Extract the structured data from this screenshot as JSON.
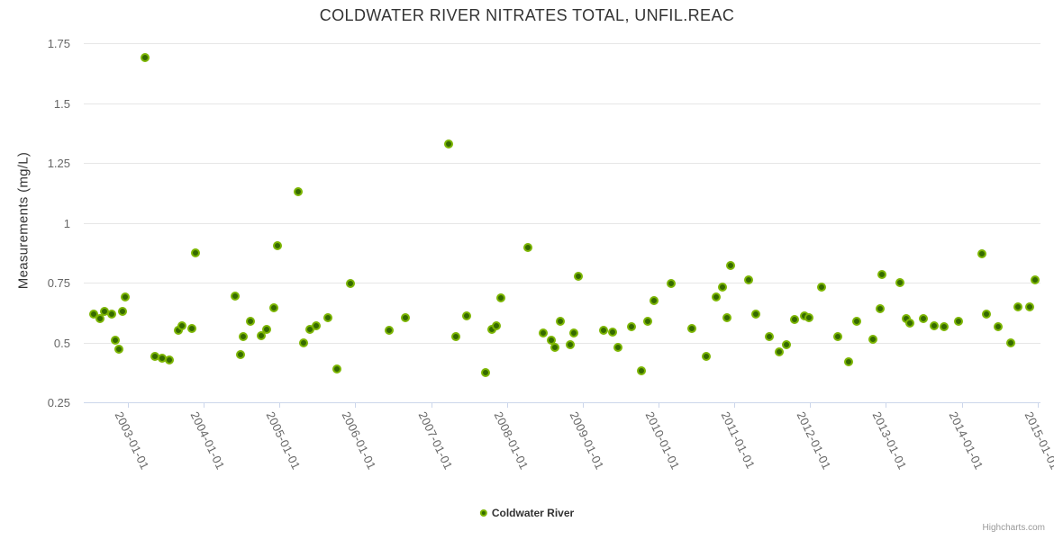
{
  "title": "COLDWATER RIVER NITRATES TOTAL, UNFIL.REAC",
  "legend": {
    "label": "Coldwater River",
    "marker_icon": "circle-marker-icon"
  },
  "credits": "Highcharts.com",
  "colors": {
    "point_fill": "#356a00",
    "point_ring": "#7cb502",
    "gridline": "#e6e6e6",
    "axis_line": "#ccd6eb",
    "title_text": "#333333",
    "axis_label_text": "#666666",
    "credits_text": "#999999"
  },
  "chart_data": {
    "type": "scatter",
    "title": "COLDWATER RIVER NITRATES TOTAL, UNFIL.REAC",
    "xlabel": "",
    "ylabel": "Measurements (mg/L)",
    "ylim": [
      0.25,
      1.75
    ],
    "grid": "horizontal-only",
    "legend_position": "bottom-center",
    "y_ticks": [
      {
        "value": 1.75,
        "label": "1.75"
      },
      {
        "value": 1.5,
        "label": "1.5"
      },
      {
        "value": 1.25,
        "label": "1.25"
      },
      {
        "value": 1,
        "label": "1"
      },
      {
        "value": 0.75,
        "label": "0.75"
      },
      {
        "value": 0.5,
        "label": "0.5"
      },
      {
        "value": 0.25,
        "label": "0.25"
      }
    ],
    "x_ticks": [
      "2003-01-01",
      "2004-01-01",
      "2005-01-01",
      "2006-01-01",
      "2007-01-01",
      "2008-01-01",
      "2009-01-01",
      "2010-01-01",
      "2011-01-01",
      "2012-01-01",
      "2013-01-01",
      "2014-01-01",
      "2015-01-01"
    ],
    "x_range_decimal_years": [
      2002.417,
      2015.04
    ],
    "series": [
      {
        "name": "Coldwater River",
        "points": [
          [
            "2002-07-20",
            0.62
          ],
          [
            "2002-08-20",
            0.6
          ],
          [
            "2002-09-10",
            0.63
          ],
          [
            "2002-10-15",
            0.62
          ],
          [
            "2002-11-01",
            0.51
          ],
          [
            "2002-11-20",
            0.47
          ],
          [
            "2002-12-05",
            0.63
          ],
          [
            "2002-12-20",
            0.69
          ],
          [
            "2003-03-25",
            1.69
          ],
          [
            "2003-05-10",
            0.44
          ],
          [
            "2003-06-15",
            0.435
          ],
          [
            "2003-07-20",
            0.425
          ],
          [
            "2003-08-30",
            0.55
          ],
          [
            "2003-09-20",
            0.57
          ],
          [
            "2003-11-05",
            0.56
          ],
          [
            "2003-11-20",
            0.875
          ],
          [
            "2004-06-01",
            0.695
          ],
          [
            "2004-06-25",
            0.45
          ],
          [
            "2004-07-10",
            0.525
          ],
          [
            "2004-08-15",
            0.59
          ],
          [
            "2004-10-05",
            0.53
          ],
          [
            "2004-11-01",
            0.555
          ],
          [
            "2004-12-05",
            0.645
          ],
          [
            "2004-12-20",
            0.905
          ],
          [
            "2005-04-01",
            1.13
          ],
          [
            "2005-04-25",
            0.5
          ],
          [
            "2005-05-25",
            0.555
          ],
          [
            "2005-06-25",
            0.57
          ],
          [
            "2005-08-20",
            0.605
          ],
          [
            "2005-10-05",
            0.39
          ],
          [
            "2005-12-10",
            0.745
          ],
          [
            "2006-06-15",
            0.55
          ],
          [
            "2006-09-01",
            0.605
          ],
          [
            "2007-03-25",
            1.33
          ],
          [
            "2007-05-01",
            0.525
          ],
          [
            "2007-06-20",
            0.61
          ],
          [
            "2007-09-20",
            0.375
          ],
          [
            "2007-10-20",
            0.555
          ],
          [
            "2007-11-10",
            0.57
          ],
          [
            "2007-12-05",
            0.685
          ],
          [
            "2008-04-10",
            0.895
          ],
          [
            "2008-06-25",
            0.54
          ],
          [
            "2008-08-01",
            0.51
          ],
          [
            "2008-08-20",
            0.48
          ],
          [
            "2008-09-15",
            0.59
          ],
          [
            "2008-11-01",
            0.49
          ],
          [
            "2008-11-20",
            0.54
          ],
          [
            "2008-12-10",
            0.775
          ],
          [
            "2009-04-10",
            0.55
          ],
          [
            "2009-05-25",
            0.545
          ],
          [
            "2009-06-20",
            0.48
          ],
          [
            "2009-08-25",
            0.565
          ],
          [
            "2009-10-10",
            0.38
          ],
          [
            "2009-11-10",
            0.59
          ],
          [
            "2009-12-10",
            0.675
          ],
          [
            "2010-03-05",
            0.745
          ],
          [
            "2010-06-10",
            0.56
          ],
          [
            "2010-08-20",
            0.44
          ],
          [
            "2010-10-05",
            0.69
          ],
          [
            "2010-11-05",
            0.73
          ],
          [
            "2010-11-25",
            0.605
          ],
          [
            "2010-12-15",
            0.82
          ],
          [
            "2011-03-10",
            0.76
          ],
          [
            "2011-04-15",
            0.62
          ],
          [
            "2011-06-20",
            0.525
          ],
          [
            "2011-08-05",
            0.46
          ],
          [
            "2011-09-10",
            0.49
          ],
          [
            "2011-10-20",
            0.595
          ],
          [
            "2011-12-05",
            0.61
          ],
          [
            "2011-12-25",
            0.605
          ],
          [
            "2012-02-25",
            0.73
          ],
          [
            "2012-05-15",
            0.525
          ],
          [
            "2012-07-05",
            0.42
          ],
          [
            "2012-08-15",
            0.59
          ],
          [
            "2012-11-01",
            0.515
          ],
          [
            "2012-12-05",
            0.64
          ],
          [
            "2012-12-15",
            0.785
          ],
          [
            "2013-03-10",
            0.75
          ],
          [
            "2013-04-10",
            0.6
          ],
          [
            "2013-04-25",
            0.58
          ],
          [
            "2013-07-01",
            0.6
          ],
          [
            "2013-08-20",
            0.57
          ],
          [
            "2013-10-10",
            0.565
          ],
          [
            "2013-12-15",
            0.59
          ],
          [
            "2014-04-10",
            0.87
          ],
          [
            "2014-05-01",
            0.62
          ],
          [
            "2014-06-25",
            0.565
          ],
          [
            "2014-08-25",
            0.5
          ],
          [
            "2014-10-01",
            0.65
          ],
          [
            "2014-11-25",
            0.65
          ],
          [
            "2014-12-20",
            0.76
          ]
        ]
      }
    ]
  }
}
